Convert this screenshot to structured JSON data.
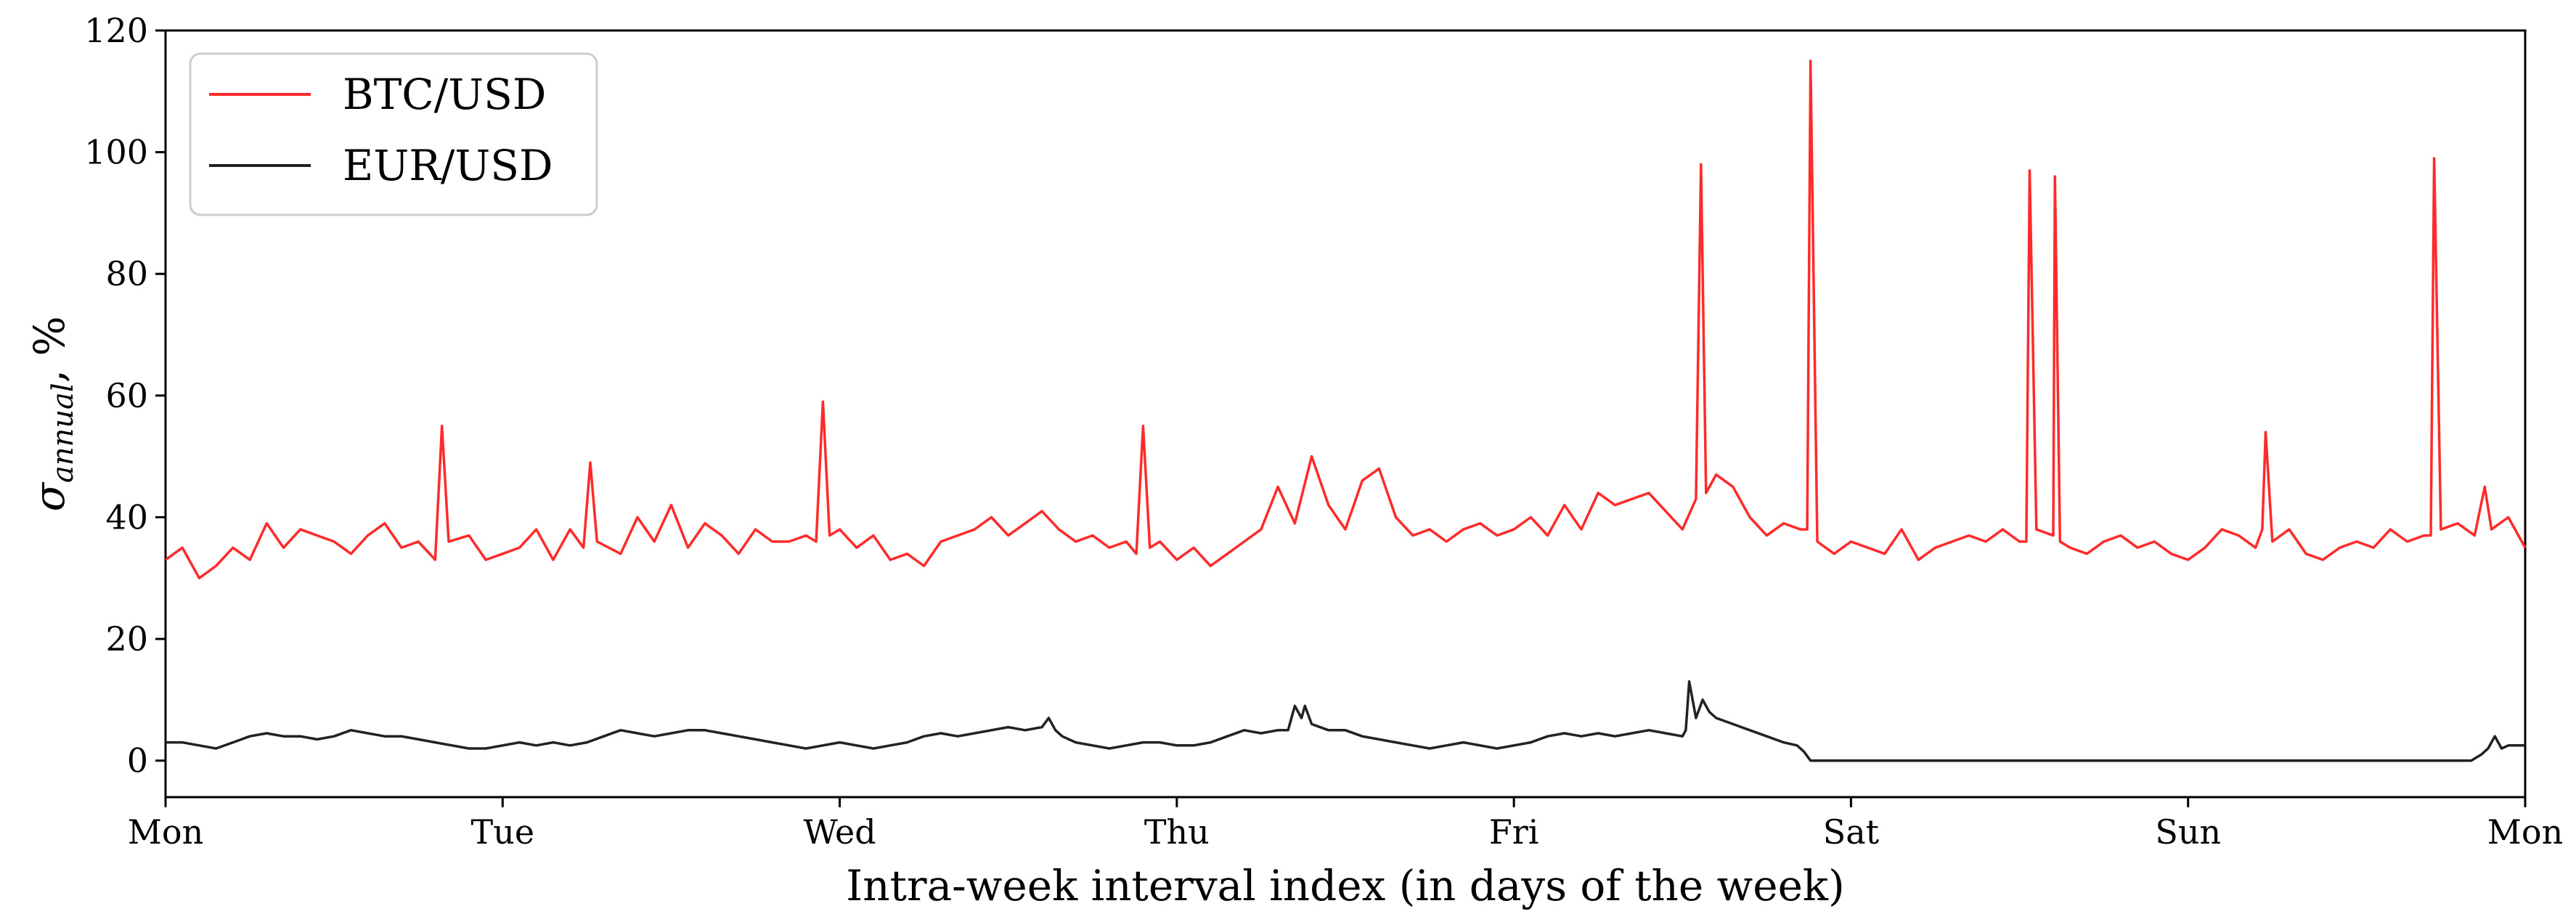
{
  "chart_data": {
    "type": "line",
    "xlabel": "Intra-week interval index (in days of the week)",
    "ylabel": "σ",
    "ylabel_subscript": "annual",
    "ylabel_suffix": ", %",
    "x_ticks": [
      "Mon",
      "Tue",
      "Wed",
      "Thu",
      "Fri",
      "Sat",
      "Sun",
      "Mon"
    ],
    "xlim": [
      0,
      7
    ],
    "ylim": [
      -6,
      120
    ],
    "y_ticks": [
      0,
      20,
      40,
      60,
      80,
      100,
      120
    ],
    "grid": false,
    "legend_position": "top-left",
    "series": [
      {
        "name": "BTC/USD",
        "color": "#ff2a2a",
        "points": [
          [
            0.0,
            33
          ],
          [
            0.05,
            35
          ],
          [
            0.1,
            30
          ],
          [
            0.15,
            32
          ],
          [
            0.2,
            35
          ],
          [
            0.25,
            33
          ],
          [
            0.3,
            39
          ],
          [
            0.35,
            35
          ],
          [
            0.4,
            38
          ],
          [
            0.45,
            37
          ],
          [
            0.5,
            36
          ],
          [
            0.55,
            34
          ],
          [
            0.6,
            37
          ],
          [
            0.65,
            39
          ],
          [
            0.7,
            35
          ],
          [
            0.75,
            36
          ],
          [
            0.8,
            33
          ],
          [
            0.82,
            55
          ],
          [
            0.84,
            36
          ],
          [
            0.9,
            37
          ],
          [
            0.95,
            33
          ],
          [
            1.0,
            34
          ],
          [
            1.05,
            35
          ],
          [
            1.1,
            38
          ],
          [
            1.15,
            33
          ],
          [
            1.2,
            38
          ],
          [
            1.24,
            35
          ],
          [
            1.26,
            49
          ],
          [
            1.28,
            36
          ],
          [
            1.35,
            34
          ],
          [
            1.4,
            40
          ],
          [
            1.45,
            36
          ],
          [
            1.5,
            42
          ],
          [
            1.55,
            35
          ],
          [
            1.6,
            39
          ],
          [
            1.65,
            37
          ],
          [
            1.7,
            34
          ],
          [
            1.75,
            38
          ],
          [
            1.8,
            36
          ],
          [
            1.85,
            36
          ],
          [
            1.9,
            37
          ],
          [
            1.93,
            36
          ],
          [
            1.95,
            59
          ],
          [
            1.97,
            37
          ],
          [
            2.0,
            38
          ],
          [
            2.05,
            35
          ],
          [
            2.1,
            37
          ],
          [
            2.15,
            33
          ],
          [
            2.2,
            34
          ],
          [
            2.25,
            32
          ],
          [
            2.3,
            36
          ],
          [
            2.35,
            37
          ],
          [
            2.4,
            38
          ],
          [
            2.45,
            40
          ],
          [
            2.5,
            37
          ],
          [
            2.55,
            39
          ],
          [
            2.6,
            41
          ],
          [
            2.65,
            38
          ],
          [
            2.7,
            36
          ],
          [
            2.75,
            37
          ],
          [
            2.8,
            35
          ],
          [
            2.85,
            36
          ],
          [
            2.88,
            34
          ],
          [
            2.9,
            55
          ],
          [
            2.92,
            35
          ],
          [
            2.95,
            36
          ],
          [
            3.0,
            33
          ],
          [
            3.05,
            35
          ],
          [
            3.1,
            32
          ],
          [
            3.15,
            34
          ],
          [
            3.2,
            36
          ],
          [
            3.25,
            38
          ],
          [
            3.3,
            45
          ],
          [
            3.35,
            39
          ],
          [
            3.4,
            50
          ],
          [
            3.45,
            42
          ],
          [
            3.5,
            38
          ],
          [
            3.55,
            46
          ],
          [
            3.6,
            48
          ],
          [
            3.65,
            40
          ],
          [
            3.7,
            37
          ],
          [
            3.75,
            38
          ],
          [
            3.8,
            36
          ],
          [
            3.85,
            38
          ],
          [
            3.9,
            39
          ],
          [
            3.95,
            37
          ],
          [
            4.0,
            38
          ],
          [
            4.05,
            40
          ],
          [
            4.1,
            37
          ],
          [
            4.15,
            42
          ],
          [
            4.2,
            38
          ],
          [
            4.25,
            44
          ],
          [
            4.3,
            42
          ],
          [
            4.4,
            44
          ],
          [
            4.45,
            41
          ],
          [
            4.5,
            38
          ],
          [
            4.54,
            43
          ],
          [
            4.555,
            98
          ],
          [
            4.57,
            44
          ],
          [
            4.6,
            47
          ],
          [
            4.65,
            45
          ],
          [
            4.7,
            40
          ],
          [
            4.75,
            37
          ],
          [
            4.8,
            39
          ],
          [
            4.85,
            38
          ],
          [
            4.87,
            38
          ],
          [
            4.88,
            115
          ],
          [
            4.9,
            36
          ],
          [
            4.95,
            34
          ],
          [
            5.0,
            36
          ],
          [
            5.05,
            35
          ],
          [
            5.1,
            34
          ],
          [
            5.15,
            38
          ],
          [
            5.2,
            33
          ],
          [
            5.25,
            35
          ],
          [
            5.3,
            36
          ],
          [
            5.35,
            37
          ],
          [
            5.4,
            36
          ],
          [
            5.45,
            38
          ],
          [
            5.5,
            36
          ],
          [
            5.52,
            36
          ],
          [
            5.53,
            97
          ],
          [
            5.55,
            38
          ],
          [
            5.6,
            37
          ],
          [
            5.605,
            96
          ],
          [
            5.62,
            36
          ],
          [
            5.65,
            35
          ],
          [
            5.7,
            34
          ],
          [
            5.75,
            36
          ],
          [
            5.8,
            37
          ],
          [
            5.85,
            35
          ],
          [
            5.9,
            36
          ],
          [
            5.95,
            34
          ],
          [
            6.0,
            33
          ],
          [
            6.05,
            35
          ],
          [
            6.1,
            38
          ],
          [
            6.15,
            37
          ],
          [
            6.2,
            35
          ],
          [
            6.22,
            38
          ],
          [
            6.23,
            54
          ],
          [
            6.25,
            36
          ],
          [
            6.3,
            38
          ],
          [
            6.35,
            34
          ],
          [
            6.4,
            33
          ],
          [
            6.45,
            35
          ],
          [
            6.5,
            36
          ],
          [
            6.55,
            35
          ],
          [
            6.6,
            38
          ],
          [
            6.65,
            36
          ],
          [
            6.7,
            37
          ],
          [
            6.72,
            37
          ],
          [
            6.73,
            99
          ],
          [
            6.75,
            38
          ],
          [
            6.8,
            39
          ],
          [
            6.85,
            37
          ],
          [
            6.88,
            45
          ],
          [
            6.9,
            38
          ],
          [
            6.95,
            40
          ],
          [
            7.0,
            35
          ]
        ]
      },
      {
        "name": "EUR/USD",
        "color": "#222222",
        "points": [
          [
            0.0,
            3
          ],
          [
            0.05,
            3
          ],
          [
            0.1,
            2.5
          ],
          [
            0.15,
            2
          ],
          [
            0.2,
            3
          ],
          [
            0.25,
            4
          ],
          [
            0.3,
            4.5
          ],
          [
            0.35,
            4
          ],
          [
            0.4,
            4
          ],
          [
            0.45,
            3.5
          ],
          [
            0.5,
            4
          ],
          [
            0.55,
            5
          ],
          [
            0.6,
            4.5
          ],
          [
            0.65,
            4
          ],
          [
            0.7,
            4
          ],
          [
            0.75,
            3.5
          ],
          [
            0.8,
            3
          ],
          [
            0.85,
            2.5
          ],
          [
            0.9,
            2
          ],
          [
            0.95,
            2
          ],
          [
            1.0,
            2.5
          ],
          [
            1.05,
            3
          ],
          [
            1.1,
            2.5
          ],
          [
            1.15,
            3
          ],
          [
            1.2,
            2.5
          ],
          [
            1.25,
            3
          ],
          [
            1.3,
            4
          ],
          [
            1.35,
            5
          ],
          [
            1.4,
            4.5
          ],
          [
            1.45,
            4
          ],
          [
            1.5,
            4.5
          ],
          [
            1.55,
            5
          ],
          [
            1.6,
            5
          ],
          [
            1.65,
            4.5
          ],
          [
            1.7,
            4
          ],
          [
            1.75,
            3.5
          ],
          [
            1.8,
            3
          ],
          [
            1.85,
            2.5
          ],
          [
            1.9,
            2
          ],
          [
            1.95,
            2.5
          ],
          [
            2.0,
            3
          ],
          [
            2.05,
            2.5
          ],
          [
            2.1,
            2
          ],
          [
            2.15,
            2.5
          ],
          [
            2.2,
            3
          ],
          [
            2.25,
            4
          ],
          [
            2.3,
            4.5
          ],
          [
            2.35,
            4
          ],
          [
            2.4,
            4.5
          ],
          [
            2.45,
            5
          ],
          [
            2.5,
            5.5
          ],
          [
            2.55,
            5
          ],
          [
            2.6,
            5.5
          ],
          [
            2.62,
            7
          ],
          [
            2.64,
            5
          ],
          [
            2.66,
            4
          ],
          [
            2.7,
            3
          ],
          [
            2.75,
            2.5
          ],
          [
            2.8,
            2
          ],
          [
            2.85,
            2.5
          ],
          [
            2.9,
            3
          ],
          [
            2.95,
            3
          ],
          [
            3.0,
            2.5
          ],
          [
            3.05,
            2.5
          ],
          [
            3.1,
            3
          ],
          [
            3.15,
            4
          ],
          [
            3.2,
            5
          ],
          [
            3.25,
            4.5
          ],
          [
            3.3,
            5
          ],
          [
            3.33,
            5
          ],
          [
            3.35,
            9
          ],
          [
            3.37,
            7
          ],
          [
            3.38,
            9
          ],
          [
            3.4,
            6
          ],
          [
            3.45,
            5
          ],
          [
            3.5,
            5
          ],
          [
            3.55,
            4
          ],
          [
            3.6,
            3.5
          ],
          [
            3.65,
            3
          ],
          [
            3.7,
            2.5
          ],
          [
            3.75,
            2
          ],
          [
            3.8,
            2.5
          ],
          [
            3.85,
            3
          ],
          [
            3.9,
            2.5
          ],
          [
            3.95,
            2
          ],
          [
            4.0,
            2.5
          ],
          [
            4.05,
            3
          ],
          [
            4.1,
            4
          ],
          [
            4.15,
            4.5
          ],
          [
            4.2,
            4
          ],
          [
            4.25,
            4.5
          ],
          [
            4.3,
            4
          ],
          [
            4.35,
            4.5
          ],
          [
            4.4,
            5
          ],
          [
            4.45,
            4.5
          ],
          [
            4.5,
            4
          ],
          [
            4.51,
            5
          ],
          [
            4.52,
            13
          ],
          [
            4.54,
            7
          ],
          [
            4.56,
            10
          ],
          [
            4.58,
            8
          ],
          [
            4.6,
            7
          ],
          [
            4.65,
            6
          ],
          [
            4.7,
            5
          ],
          [
            4.75,
            4
          ],
          [
            4.8,
            3
          ],
          [
            4.84,
            2.5
          ],
          [
            4.86,
            1.5
          ],
          [
            4.88,
            0
          ],
          [
            5.0,
            0
          ],
          [
            5.5,
            0
          ],
          [
            6.0,
            0
          ],
          [
            6.5,
            0
          ],
          [
            6.84,
            0
          ],
          [
            6.87,
            1
          ],
          [
            6.89,
            2
          ],
          [
            6.91,
            4
          ],
          [
            6.93,
            2
          ],
          [
            6.95,
            2.5
          ],
          [
            7.0,
            2.5
          ]
        ]
      }
    ]
  }
}
